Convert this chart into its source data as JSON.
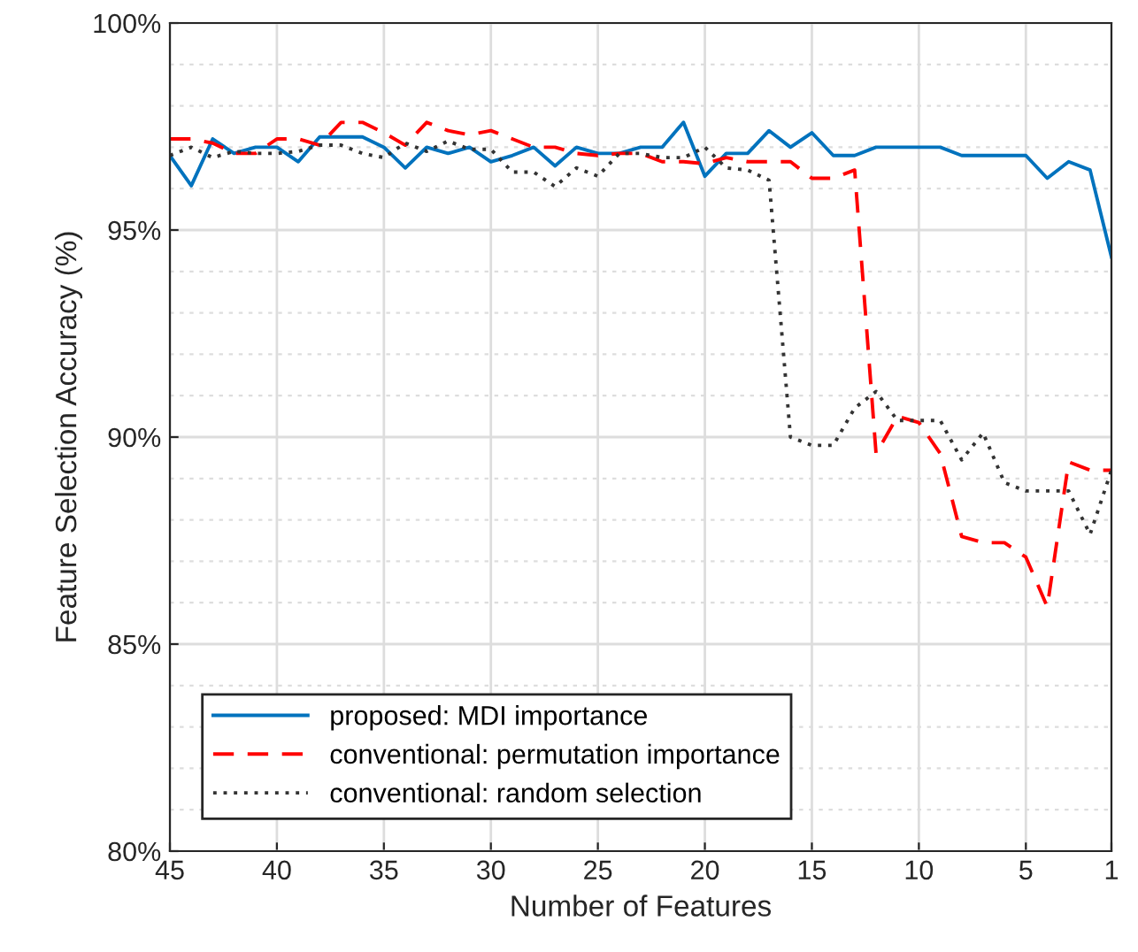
{
  "chart_data": {
    "type": "line",
    "xlabel": "Number of Features",
    "ylabel": "Feature Selection Accuracy (%)",
    "x": [
      45,
      44,
      43,
      42,
      41,
      40,
      39,
      38,
      37,
      36,
      35,
      34,
      33,
      32,
      31,
      30,
      29,
      28,
      27,
      26,
      25,
      24,
      23,
      22,
      21,
      20,
      19,
      18,
      17,
      16,
      15,
      14,
      13,
      12,
      11,
      10,
      9,
      8,
      7,
      6,
      5,
      4,
      3,
      2,
      1
    ],
    "series": [
      {
        "name": "proposed: MDI importance",
        "color": "#0072bd",
        "line_style": "solid",
        "values": [
          96.8,
          96.07,
          97.2,
          96.85,
          97.0,
          97.0,
          96.65,
          97.25,
          97.25,
          97.25,
          97.0,
          96.5,
          97.0,
          96.85,
          97.0,
          96.65,
          96.8,
          97.0,
          96.55,
          97.0,
          96.85,
          96.85,
          97.0,
          97.0,
          97.6,
          96.3,
          96.85,
          96.85,
          97.4,
          97.0,
          97.35,
          96.8,
          96.8,
          97.0,
          97.0,
          97.0,
          97.0,
          96.8,
          96.8,
          96.8,
          96.8,
          96.25,
          96.65,
          96.45,
          94.35
        ]
      },
      {
        "name": "conventional: permutation importance",
        "color": "#ff0000",
        "line_style": "dashed",
        "values": [
          97.2,
          97.2,
          97.1,
          96.85,
          96.85,
          97.2,
          97.2,
          97.05,
          97.6,
          97.6,
          97.35,
          97.05,
          97.6,
          97.4,
          97.3,
          97.4,
          97.2,
          97.0,
          97.0,
          96.85,
          96.8,
          96.85,
          96.85,
          96.65,
          96.65,
          96.6,
          96.75,
          96.65,
          96.65,
          96.65,
          96.25,
          96.25,
          96.45,
          89.6,
          90.5,
          90.35,
          89.6,
          87.6,
          87.45,
          87.45,
          87.1,
          85.9,
          89.4,
          89.2,
          89.2
        ]
      },
      {
        "name": "conventional: random selection",
        "color": "#333333",
        "line_style": "dotted",
        "values": [
          96.8,
          97.0,
          96.75,
          96.9,
          96.85,
          96.85,
          96.9,
          97.05,
          97.05,
          96.85,
          96.75,
          97.1,
          96.9,
          97.15,
          96.95,
          96.95,
          96.4,
          96.4,
          96.05,
          96.5,
          96.3,
          96.85,
          96.85,
          96.75,
          96.75,
          97.0,
          96.5,
          96.45,
          96.2,
          90.0,
          89.8,
          89.8,
          90.7,
          91.1,
          90.4,
          90.4,
          90.4,
          89.45,
          90.1,
          88.9,
          88.7,
          88.7,
          88.7,
          87.65,
          89.2
        ]
      }
    ],
    "xlim": [
      45,
      1
    ],
    "xticks": [
      45,
      40,
      35,
      30,
      25,
      20,
      15,
      10,
      5,
      1
    ],
    "ylim": [
      80,
      100
    ],
    "yticks": [
      {
        "value": 80,
        "label": "80%"
      },
      {
        "value": 85,
        "label": "85%"
      },
      {
        "value": 90,
        "label": "90%"
      },
      {
        "value": 95,
        "label": "95%"
      },
      {
        "value": 100,
        "label": "100%"
      }
    ],
    "grid": true,
    "legend": "bottom left",
    "marker": "none"
  }
}
